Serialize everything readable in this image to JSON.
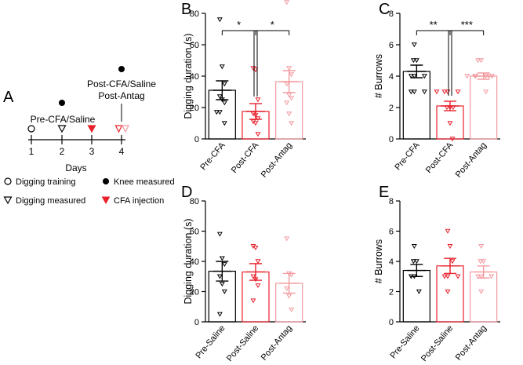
{
  "colors": {
    "black": "#000000",
    "red": "#e8202a",
    "pink": "#f39aa0"
  },
  "timeline": {
    "letter": "A",
    "ticks": [
      "1",
      "2",
      "3",
      "4"
    ],
    "label_day2": "Pre-CFA/Saline",
    "label_day4_line1": "Post-CFA/Saline",
    "label_day4_line2": "Post-Antag",
    "axis_label": "Days",
    "legend": [
      {
        "icon": "open-circle-icon",
        "label": "Digging training"
      },
      {
        "icon": "filled-circle-icon",
        "label": "Knee measured"
      },
      {
        "icon": "open-triangle-icon",
        "label": "Digging measured"
      },
      {
        "icon": "red-triangle-icon",
        "label": "CFA injection"
      }
    ]
  },
  "chart_data": [
    {
      "panel": "B",
      "type": "bar",
      "ylabel": "Digging duration (s)",
      "ylim": [
        0,
        80
      ],
      "yticks": [
        0,
        20,
        40,
        60,
        80
      ],
      "categories": [
        "Pre-CFA",
        "Post-CFA",
        "Post-Antag"
      ],
      "bar_colors": [
        "#000000",
        "#e8202a",
        "#f39aa0"
      ],
      "means": [
        31,
        17.5,
        36.5
      ],
      "sem": [
        6,
        5,
        7
      ],
      "points": [
        [
          76,
          46,
          35,
          27,
          25,
          23,
          17,
          17,
          10
        ],
        [
          45,
          44,
          25,
          16,
          15,
          13,
          11,
          10,
          3
        ],
        [
          87,
          45,
          41,
          35,
          28,
          26,
          23,
          16,
          10
        ]
      ],
      "significance": [
        {
          "from": 0,
          "to": 1,
          "label": "*"
        },
        {
          "from": 1,
          "to": 2,
          "label": "*"
        }
      ]
    },
    {
      "panel": "C",
      "type": "bar",
      "ylabel": "# Burrows",
      "ylim": [
        0,
        8
      ],
      "yticks": [
        0,
        2,
        4,
        6,
        8
      ],
      "categories": [
        "Pre-CFA",
        "Post-CFA",
        "Post-Antag"
      ],
      "bar_colors": [
        "#000000",
        "#e8202a",
        "#f39aa0"
      ],
      "means": [
        4.3,
        2.1,
        4.0
      ],
      "sem": [
        0.4,
        0.3,
        0.2
      ],
      "points": [
        [
          6,
          5,
          5,
          4,
          4,
          4,
          3,
          3,
          3
        ],
        [
          3,
          3,
          3,
          3,
          2,
          2,
          2,
          1,
          0
        ],
        [
          5,
          5,
          4,
          4,
          4,
          4,
          4,
          4,
          3
        ]
      ],
      "significance": [
        {
          "from": 0,
          "to": 1,
          "label": "**"
        },
        {
          "from": 1,
          "to": 2,
          "label": "***"
        }
      ]
    },
    {
      "panel": "D",
      "type": "bar",
      "ylabel": "Digging duration (s)",
      "ylim": [
        0,
        80
      ],
      "yticks": [
        0,
        20,
        40,
        60,
        80
      ],
      "categories": [
        "Pre-Saline",
        "Post-Saline",
        "Post-Antag"
      ],
      "bar_colors": [
        "#000000",
        "#e8202a",
        "#f39aa0"
      ],
      "means": [
        33.5,
        33,
        25.5
      ],
      "sem": [
        6.5,
        5.5,
        6.5
      ],
      "points": [
        [
          58,
          42,
          38,
          30,
          25,
          20,
          5
        ],
        [
          50,
          49,
          40,
          30,
          28,
          24,
          14
        ],
        [
          55,
          32,
          31,
          22,
          17,
          8
        ]
      ],
      "significance": []
    },
    {
      "panel": "E",
      "type": "bar",
      "ylabel": "# Burrows",
      "ylim": [
        0,
        8
      ],
      "yticks": [
        0,
        2,
        4,
        6,
        8
      ],
      "categories": [
        "Pre-Saline",
        "Post-Saline",
        "Post-Antag"
      ],
      "bar_colors": [
        "#000000",
        "#e8202a",
        "#f39aa0"
      ],
      "means": [
        3.4,
        3.7,
        3.3
      ],
      "sem": [
        0.4,
        0.5,
        0.4
      ],
      "points": [
        [
          5,
          4,
          4,
          3,
          3,
          2
        ],
        [
          6,
          5,
          4,
          3,
          3,
          3,
          2
        ],
        [
          5,
          4,
          4,
          3,
          3,
          3,
          2
        ]
      ],
      "significance": []
    }
  ]
}
